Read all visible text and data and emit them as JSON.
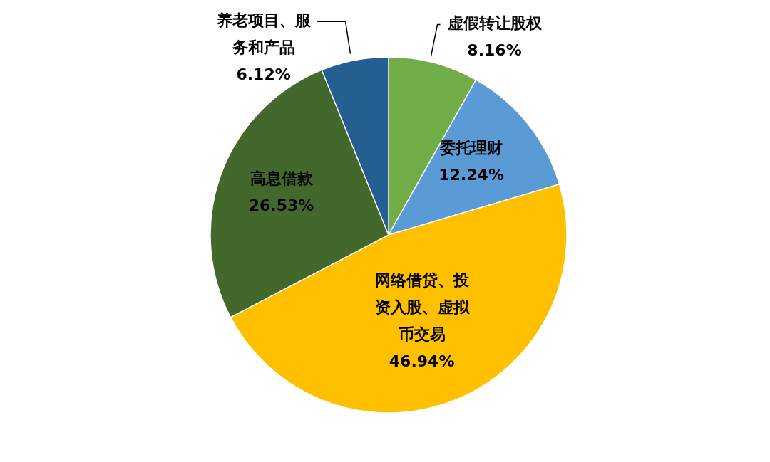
{
  "chart_data": {
    "type": "pie",
    "categories": [
      "虚假转让股权",
      "委托理财",
      "网络借贷、投资入股、虚拟币交易",
      "高息借款",
      "养老项目、服务和产品"
    ],
    "values": [
      8.16,
      12.24,
      46.94,
      26.53,
      6.12
    ],
    "value_labels": [
      "8.16%",
      "12.24%",
      "46.94%",
      "26.53%",
      "6.12%"
    ],
    "colors": [
      "#70ad47",
      "#5b9bd5",
      "#ffc000",
      "#43682b",
      "#255e91"
    ],
    "legend": false
  }
}
